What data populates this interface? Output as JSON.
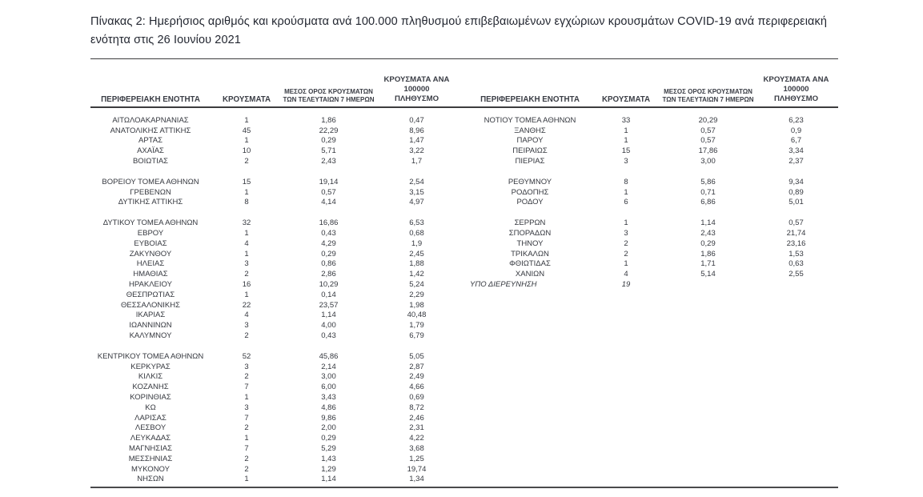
{
  "title": "Πίνακας 2:  Ημερήσιος αριθμός και κρούσματα ανά 100.000 πληθυσμού επιβεβαιωμένων εγχώριων κρουσμάτων COVID-19 ανά περιφερειακή ενότητα στις 26 Ιουνίου 2021",
  "table": {
    "headers": {
      "region": "ΠΕΡΙΦΕΡΕΙΑΚΗ ΕΝΟΤΗΤΑ",
      "cases": "ΚΡΟΥΣΜΑΤΑ",
      "avg7_line1": "ΜΕΣΟΣ ΟΡΟΣ ΚΡΟΥΣΜΑΤΩΝ",
      "avg7_line2": "ΤΩΝ ΤΕΛΕΥΤΑΙΩΝ 7 ΗΜΕΡΩΝ",
      "per100k_line1": "ΚΡΟΥΣΜΑΤΑ ΑΝΑ 100000",
      "per100k_line2": "ΠΛΗΘΥΣΜΟ"
    },
    "left_groups": [
      [
        {
          "region": "ΑΙΤΩΛΟΑΚΑΡΝΑΝΙΑΣ",
          "cases": "1",
          "avg7": "1,86",
          "per100k": "0,47"
        },
        {
          "region": "ΑΝΑΤΟΛΙΚΗΣ ΑΤΤΙΚΗΣ",
          "cases": "45",
          "avg7": "22,29",
          "per100k": "8,96"
        },
        {
          "region": "ΑΡΤΑΣ",
          "cases": "1",
          "avg7": "0,29",
          "per100k": "1,47"
        },
        {
          "region": "ΑΧΑΪΑΣ",
          "cases": "10",
          "avg7": "5,71",
          "per100k": "3,22"
        },
        {
          "region": "ΒΟΙΩΤΙΑΣ",
          "cases": "2",
          "avg7": "2,43",
          "per100k": "1,7"
        }
      ],
      [
        {
          "region": "ΒΟΡΕΙΟΥ ΤΟΜΕΑ ΑΘΗΝΩΝ",
          "cases": "15",
          "avg7": "19,14",
          "per100k": "2,54"
        },
        {
          "region": "ΓΡΕΒΕΝΩΝ",
          "cases": "1",
          "avg7": "0,57",
          "per100k": "3,15"
        },
        {
          "region": "ΔΥΤΙΚΗΣ ΑΤΤΙΚΗΣ",
          "cases": "8",
          "avg7": "4,14",
          "per100k": "4,97"
        }
      ],
      [
        {
          "region": "ΔΥΤΙΚΟΥ ΤΟΜΕΑ ΑΘΗΝΩΝ",
          "cases": "32",
          "avg7": "16,86",
          "per100k": "6,53"
        },
        {
          "region": "ΕΒΡΟΥ",
          "cases": "1",
          "avg7": "0,43",
          "per100k": "0,68"
        },
        {
          "region": "ΕΥΒΟΙΑΣ",
          "cases": "4",
          "avg7": "4,29",
          "per100k": "1,9"
        },
        {
          "region": "ΖΑΚΥΝΘΟΥ",
          "cases": "1",
          "avg7": "0,29",
          "per100k": "2,45"
        },
        {
          "region": "ΗΛΕΙΑΣ",
          "cases": "3",
          "avg7": "0,86",
          "per100k": "1,88"
        },
        {
          "region": "ΗΜΑΘΙΑΣ",
          "cases": "2",
          "avg7": "2,86",
          "per100k": "1,42"
        },
        {
          "region": "ΗΡΑΚΛΕΙΟΥ",
          "cases": "16",
          "avg7": "10,29",
          "per100k": "5,24"
        },
        {
          "region": "ΘΕΣΠΡΩΤΙΑΣ",
          "cases": "1",
          "avg7": "0,14",
          "per100k": "2,29"
        },
        {
          "region": "ΘΕΣΣΑΛΟΝΙΚΗΣ",
          "cases": "22",
          "avg7": "23,57",
          "per100k": "1,98"
        },
        {
          "region": "ΙΚΑΡΙΑΣ",
          "cases": "4",
          "avg7": "1,14",
          "per100k": "40,48"
        },
        {
          "region": "ΙΩΑΝΝΙΝΩΝ",
          "cases": "3",
          "avg7": "4,00",
          "per100k": "1,79"
        },
        {
          "region": "ΚΑΛΥΜΝΟΥ",
          "cases": "2",
          "avg7": "0,43",
          "per100k": "6,79"
        }
      ],
      [
        {
          "region": "ΚΕΝΤΡΙΚΟΥ ΤΟΜΕΑ ΑΘΗΝΩΝ",
          "cases": "52",
          "avg7": "45,86",
          "per100k": "5,05"
        },
        {
          "region": "ΚΕΡΚΥΡΑΣ",
          "cases": "3",
          "avg7": "2,14",
          "per100k": "2,87"
        },
        {
          "region": "ΚΙΛΚΙΣ",
          "cases": "2",
          "avg7": "3,00",
          "per100k": "2,49"
        },
        {
          "region": "ΚΟΖΑΝΗΣ",
          "cases": "7",
          "avg7": "6,00",
          "per100k": "4,66"
        },
        {
          "region": "ΚΟΡΙΝΘΙΑΣ",
          "cases": "1",
          "avg7": "3,43",
          "per100k": "0,69"
        },
        {
          "region": "ΚΩ",
          "cases": "3",
          "avg7": "4,86",
          "per100k": "8,72"
        },
        {
          "region": "ΛΑΡΙΣΑΣ",
          "cases": "7",
          "avg7": "9,86",
          "per100k": "2,46"
        },
        {
          "region": "ΛΕΣΒΟΥ",
          "cases": "2",
          "avg7": "2,00",
          "per100k": "2,31"
        },
        {
          "region": "ΛΕΥΚΑΔΑΣ",
          "cases": "1",
          "avg7": "0,29",
          "per100k": "4,22"
        },
        {
          "region": "ΜΑΓΝΗΣΙΑΣ",
          "cases": "7",
          "avg7": "5,29",
          "per100k": "3,68"
        },
        {
          "region": "ΜΕΣΣΗΝΙΑΣ",
          "cases": "2",
          "avg7": "1,43",
          "per100k": "1,25"
        },
        {
          "region": "ΜΥΚΟΝΟΥ",
          "cases": "2",
          "avg7": "1,29",
          "per100k": "19,74"
        },
        {
          "region": "ΝΗΣΩΝ",
          "cases": "1",
          "avg7": "1,14",
          "per100k": "1,34"
        }
      ]
    ],
    "right_groups": [
      [
        {
          "region": "ΝΟΤΙΟΥ ΤΟΜΕΑ ΑΘΗΝΩΝ",
          "cases": "33",
          "avg7": "20,29",
          "per100k": "6,23"
        },
        {
          "region": "ΞΑΝΘΗΣ",
          "cases": "1",
          "avg7": "0,57",
          "per100k": "0,9"
        },
        {
          "region": "ΠΑΡΟΥ",
          "cases": "1",
          "avg7": "0,57",
          "per100k": "6,7"
        },
        {
          "region": "ΠΕΙΡΑΙΩΣ",
          "cases": "15",
          "avg7": "17,86",
          "per100k": "3,34"
        },
        {
          "region": "ΠΙΕΡΙΑΣ",
          "cases": "3",
          "avg7": "3,00",
          "per100k": "2,37"
        }
      ],
      [
        {
          "region": "ΡΕΘΥΜΝΟΥ",
          "cases": "8",
          "avg7": "5,86",
          "per100k": "9,34"
        },
        {
          "region": "ΡΟΔΟΠΗΣ",
          "cases": "1",
          "avg7": "0,71",
          "per100k": "0,89"
        },
        {
          "region": "ΡΟΔΟΥ",
          "cases": "6",
          "avg7": "6,86",
          "per100k": "5,01"
        }
      ],
      [
        {
          "region": "ΣΕΡΡΩΝ",
          "cases": "1",
          "avg7": "1,14",
          "per100k": "0,57"
        },
        {
          "region": "ΣΠΟΡΑΔΩΝ",
          "cases": "3",
          "avg7": "2,43",
          "per100k": "21,74"
        },
        {
          "region": "ΤΗΝΟΥ",
          "cases": "2",
          "avg7": "0,29",
          "per100k": "23,16"
        },
        {
          "region": "ΤΡΙΚΑΛΩΝ",
          "cases": "2",
          "avg7": "1,86",
          "per100k": "1,53"
        },
        {
          "region": "ΦΘΙΩΤΙΔΑΣ",
          "cases": "1",
          "avg7": "1,71",
          "per100k": "0,63"
        },
        {
          "region": "ΧΑΝΙΩΝ",
          "cases": "4",
          "avg7": "5,14",
          "per100k": "2,55"
        },
        {
          "region": "ΥΠΟ ΔΙΕΡΕΥΝΗΣΗ",
          "cases": "19",
          "avg7": "",
          "per100k": "",
          "pending": true
        }
      ]
    ]
  }
}
